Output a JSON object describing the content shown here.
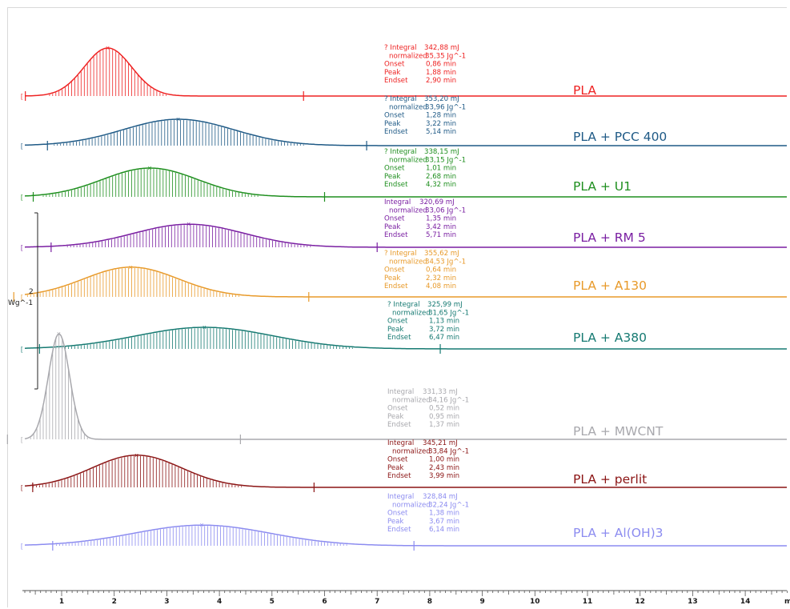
{
  "chart_data": {
    "type": "line",
    "y_scale_label": "Wg^-1",
    "y_scale_value": "2",
    "x_axis": {
      "min": 0.3,
      "max": 14.8,
      "ticks": [
        "1",
        "2",
        "3",
        "4",
        "5",
        "6",
        "7",
        "8",
        "9",
        "10",
        "11",
        "12",
        "13",
        "14"
      ],
      "unit": "m"
    },
    "labels": {
      "integral": "Integral",
      "normalized": "normalized",
      "onset": "Onset",
      "peak": "Peak",
      "endset": "Endset"
    },
    "series": [
      {
        "name": "PLA",
        "color": "#ee2222",
        "integral": "342,88 mJ",
        "normalized": "35,35 Jg^-1",
        "onset": "0,86 min",
        "peak": "1,88 min",
        "endset": "2,90 min",
        "prefix": "? ",
        "peak_height": 1.0,
        "sigma": 0.45,
        "start": 0.35,
        "end": 5.6
      },
      {
        "name": "PLA + PCC 400",
        "color": "#1f5a86",
        "integral": "353,20 mJ",
        "normalized": "33,96 Jg^-1",
        "onset": "1,28 min",
        "peak": "3,22 min",
        "endset": "5,14 min",
        "prefix": "? ",
        "peak_height": 0.55,
        "sigma": 1.05,
        "start": 0.35,
        "end": 6.8
      },
      {
        "name": "PLA + U1",
        "color": "#1f8f1f",
        "integral": "338,15 mJ",
        "normalized": "33,15 Jg^-1",
        "onset": "1,01 min",
        "peak": "2,68 min",
        "endset": "4,32 min",
        "prefix": "? ",
        "peak_height": 0.6,
        "sigma": 0.9,
        "start": 0.35,
        "end": 6.0
      },
      {
        "name": "PLA + RM 5",
        "color": "#7a1fa2",
        "integral": "320,69 mJ",
        "normalized": "33,06 Jg^-1",
        "onset": "1,35 min",
        "peak": "3,42 min",
        "endset": "5,71 min",
        "prefix": "",
        "peak_height": 0.48,
        "sigma": 1.05,
        "start": 0.35,
        "end": 7.0
      },
      {
        "name": "PLA + A130",
        "color": "#e89a2a",
        "integral": "355,62 mJ",
        "normalized": "34,53 Jg^-1",
        "onset": "0,64 min",
        "peak": "2,32 min",
        "endset": "4,08 min",
        "prefix": "? ",
        "peak_height": 0.62,
        "sigma": 0.9,
        "start": 0.35,
        "end": 5.7
      },
      {
        "name": "PLA + A380",
        "color": "#167a72",
        "integral": "325,99 mJ",
        "normalized": "31,65 Jg^-1",
        "onset": "1,13 min",
        "peak": "3,72 min",
        "endset": "6,47 min",
        "prefix": "? ",
        "peak_height": 0.45,
        "sigma": 1.3,
        "start": 0.35,
        "end": 8.2
      },
      {
        "name": "PLA + MWCNT",
        "color": "#a8a8ad",
        "integral": "331,33 mJ",
        "normalized": "34,16 Jg^-1",
        "onset": "0,52 min",
        "peak": "0,95 min",
        "endset": "1,37 min",
        "prefix": "",
        "peak_height": 2.2,
        "sigma": 0.2,
        "start": 0.35,
        "end": 4.4
      },
      {
        "name": "PLA + perlit",
        "color": "#8b1414",
        "integral": "345,21 mJ",
        "normalized": "33,84 Jg^-1",
        "onset": "1,00 min",
        "peak": "2,43 min",
        "endset": "3,99 min",
        "prefix": "",
        "peak_height": 0.67,
        "sigma": 0.85,
        "start": 0.35,
        "end": 5.8
      },
      {
        "name": "PLA + Al(OH)3",
        "color": "#8c8cf0",
        "integral": "328,84 mJ",
        "normalized": "32,24 Jg^-1",
        "onset": "1,38 min",
        "peak": "3,67 min",
        "endset": "6,14 min",
        "prefix": "",
        "peak_height": 0.43,
        "sigma": 1.3,
        "start": 0.35,
        "end": 7.7
      }
    ]
  }
}
